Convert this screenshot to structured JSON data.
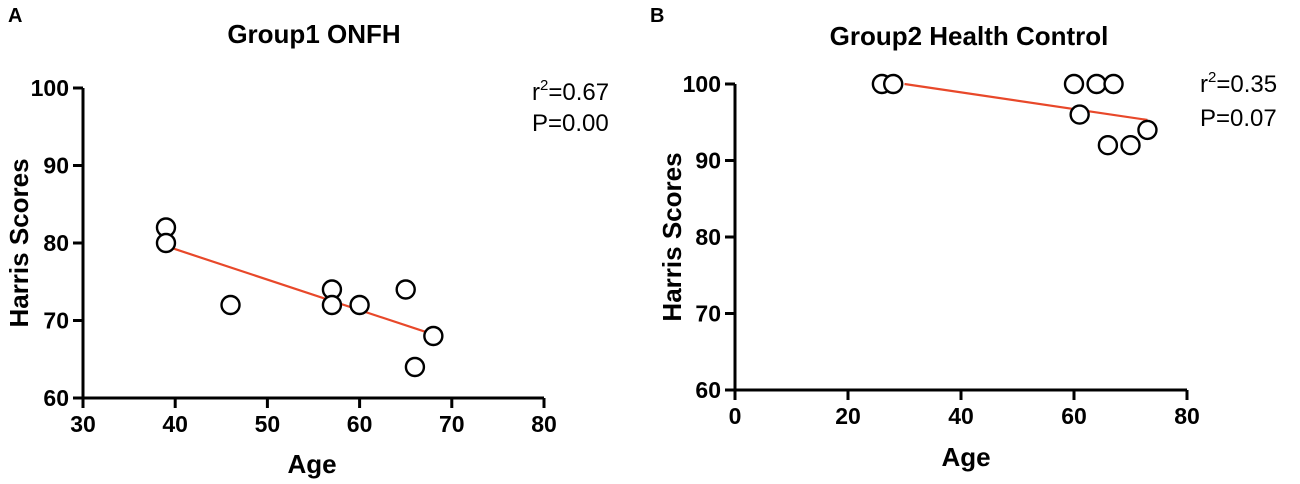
{
  "chart_data": [
    {
      "type": "scatter",
      "panel_label": "A",
      "title": "Group1 ONFH",
      "xlabel": "Age",
      "ylabel": "Harris Scores",
      "xlim": [
        30,
        80
      ],
      "ylim": [
        60,
        100
      ],
      "xticks": [
        30,
        40,
        50,
        60,
        70,
        80
      ],
      "yticks": [
        60,
        70,
        80,
        90,
        100
      ],
      "points": [
        {
          "x": 39,
          "y": 82
        },
        {
          "x": 39,
          "y": 80
        },
        {
          "x": 46,
          "y": 72
        },
        {
          "x": 57,
          "y": 74
        },
        {
          "x": 57,
          "y": 72
        },
        {
          "x": 60,
          "y": 72
        },
        {
          "x": 65,
          "y": 74
        },
        {
          "x": 66,
          "y": 64
        },
        {
          "x": 68,
          "y": 68
        }
      ],
      "fit_line": {
        "x": [
          39,
          68
        ],
        "y": [
          79.6,
          68.2
        ],
        "color": "#e8482a"
      },
      "stats": {
        "r2_prefix": "r",
        "r2_sup": "2",
        "r2_value": "=0.67",
        "p": "P=0.00"
      }
    },
    {
      "type": "scatter",
      "panel_label": "B",
      "title": "Group2 Health Control",
      "xlabel": "Age",
      "ylabel": "Harris Scores",
      "xlim": [
        0,
        80
      ],
      "ylim": [
        60,
        100
      ],
      "xticks": [
        0,
        20,
        40,
        60,
        80
      ],
      "yticks": [
        60,
        70,
        80,
        90,
        100
      ],
      "points": [
        {
          "x": 26,
          "y": 100
        },
        {
          "x": 28,
          "y": 100
        },
        {
          "x": 60,
          "y": 100
        },
        {
          "x": 64,
          "y": 100
        },
        {
          "x": 67,
          "y": 100
        },
        {
          "x": 61,
          "y": 96
        },
        {
          "x": 66,
          "y": 92
        },
        {
          "x": 70,
          "y": 92
        },
        {
          "x": 73,
          "y": 94
        }
      ],
      "fit_line": {
        "x": [
          30,
          73
        ],
        "y": [
          100,
          95.3
        ],
        "color": "#e8482a"
      },
      "stats": {
        "r2_prefix": "r",
        "r2_sup": "2",
        "r2_value": "=0.35",
        "p": "P=0.07"
      }
    }
  ]
}
